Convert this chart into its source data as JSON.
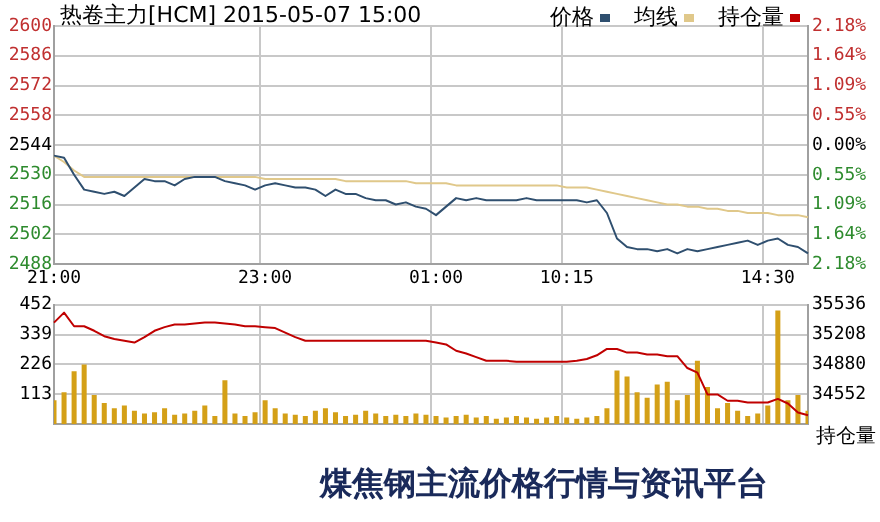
{
  "chart_data": [
    {
      "type": "line",
      "title": "热卷主力[HCM] 2015-05-07 15:00",
      "categories": [
        "21:00",
        null,
        null,
        null,
        null,
        null,
        null,
        null,
        null,
        null,
        null,
        null,
        null,
        null,
        null,
        null,
        null,
        null,
        null,
        null,
        null,
        "23:00",
        null,
        null,
        null,
        null,
        null,
        null,
        null,
        null,
        null,
        null,
        null,
        null,
        null,
        null,
        null,
        null,
        "01:00",
        null,
        null,
        null,
        null,
        null,
        null,
        null,
        null,
        null,
        null,
        null,
        null,
        "10:15",
        null,
        null,
        null,
        null,
        null,
        null,
        null,
        null,
        null,
        null,
        null,
        null,
        null,
        null,
        null,
        null,
        null,
        null,
        null,
        "14:30",
        null,
        null,
        null,
        null
      ],
      "series": [
        {
          "name": "价格",
          "color": "#2f4f6f",
          "values": [
            2539,
            2538,
            2530,
            2523,
            2522,
            2521,
            2522,
            2520,
            2524,
            2528,
            2527,
            2527,
            2525,
            2528,
            2529,
            2529,
            2529,
            2527,
            2526,
            2525,
            2523,
            2525,
            2526,
            2525,
            2524,
            2524,
            2523,
            2520,
            2523,
            2521,
            2521,
            2519,
            2518,
            2518,
            2516,
            2517,
            2515,
            2514,
            2511,
            2515,
            2519,
            2518,
            2519,
            2518,
            2518,
            2518,
            2518,
            2519,
            2518,
            2518,
            2518,
            2518,
            2518,
            2517,
            2518,
            2512,
            2500,
            2496,
            2495,
            2495,
            2494,
            2495,
            2493,
            2495,
            2494,
            2495,
            2496,
            2497,
            2498,
            2499,
            2497,
            2499,
            2500,
            2497,
            2496,
            2493
          ]
        },
        {
          "name": "均线",
          "color": "#e0c88a",
          "values": [
            2539,
            2536,
            2532,
            2529,
            2529,
            2529,
            2529,
            2529,
            2529,
            2529,
            2529,
            2529,
            2529,
            2529,
            2529,
            2529,
            2529,
            2529,
            2529,
            2529,
            2529,
            2528,
            2528,
            2528,
            2528,
            2528,
            2528,
            2528,
            2528,
            2527,
            2527,
            2527,
            2527,
            2527,
            2527,
            2527,
            2526,
            2526,
            2526,
            2526,
            2525,
            2525,
            2525,
            2525,
            2525,
            2525,
            2525,
            2525,
            2525,
            2525,
            2525,
            2524,
            2524,
            2524,
            2523,
            2522,
            2521,
            2520,
            2519,
            2518,
            2517,
            2516,
            2516,
            2515,
            2515,
            2514,
            2514,
            2513,
            2513,
            2512,
            2512,
            2512,
            2511,
            2511,
            2511,
            2510
          ]
        }
      ],
      "ylim": [
        2488,
        2600
      ],
      "yticks": [
        2488,
        2502,
        2516,
        2530,
        2544,
        2558,
        2572,
        2586,
        2600
      ],
      "y2lim": [
        -2.18,
        2.18
      ],
      "y2ticks": [
        {
          "value": -2.18,
          "label": "2.18%"
        },
        {
          "value": -1.64,
          "label": "1.64%"
        },
        {
          "value": -1.09,
          "label": "1.09%"
        },
        {
          "value": -0.55,
          "label": "0.55%"
        },
        {
          "value": 0,
          "label": "0.00%"
        },
        {
          "value": 0.55,
          "label": "0.55%"
        },
        {
          "value": 1.09,
          "label": "1.09%"
        },
        {
          "value": 1.64,
          "label": "1.64%"
        },
        {
          "value": 2.18,
          "label": "2.18%"
        }
      ],
      "grid": true,
      "legend": "top right"
    },
    {
      "type": "bar",
      "y2label": "持仓量",
      "categories": [
        null,
        null,
        null,
        null,
        null,
        null,
        null,
        null,
        null,
        null,
        null,
        null,
        null,
        null,
        null,
        null,
        null,
        null,
        null,
        null,
        null,
        null,
        null,
        null,
        null,
        null,
        null,
        null,
        null,
        null,
        null,
        null,
        null,
        null,
        null,
        null,
        null,
        null,
        null,
        null,
        null,
        null,
        null,
        null,
        null,
        null,
        null,
        null,
        null,
        null,
        null,
        null,
        null,
        null,
        null,
        null,
        null,
        null,
        null,
        null,
        null,
        null,
        null,
        null,
        null,
        null,
        null,
        null,
        null,
        null,
        null,
        null,
        null,
        null,
        null,
        null
      ],
      "series": [
        {
          "color": "#d4a017",
          "values": [
            90,
            120,
            200,
            226,
            110,
            80,
            60,
            70,
            50,
            40,
            45,
            60,
            35,
            40,
            50,
            70,
            30,
            166,
            40,
            30,
            45,
            90,
            60,
            40,
            35,
            30,
            50,
            60,
            45,
            30,
            35,
            50,
            40,
            30,
            35,
            30,
            40,
            35,
            30,
            25,
            30,
            35,
            25,
            30,
            20,
            25,
            30,
            25,
            20,
            25,
            30,
            25,
            20,
            25,
            30,
            60,
            203,
            180,
            120,
            100,
            150,
            160,
            90,
            110,
            240,
            140,
            60,
            80,
            50,
            30,
            40,
            70,
            430,
            90,
            110,
            50
          ]
        },
        {
          "name": "持仓量",
          "type": "line",
          "axis": "y2",
          "color": "#c00000",
          "values": [
            35340,
            35450,
            35300,
            35300,
            35250,
            35190,
            35160,
            35140,
            35120,
            35180,
            35250,
            35290,
            35320,
            35320,
            35330,
            35340,
            35340,
            35330,
            35320,
            35300,
            35300,
            35290,
            35280,
            35230,
            35180,
            35140,
            35140,
            35140,
            35140,
            35140,
            35140,
            35140,
            35140,
            35140,
            35140,
            35140,
            35140,
            35140,
            35120,
            35100,
            35030,
            35000,
            34960,
            34920,
            34920,
            34920,
            34910,
            34910,
            34910,
            34910,
            34910,
            34910,
            34920,
            34940,
            34980,
            35050,
            35050,
            35010,
            35010,
            34990,
            34990,
            34970,
            34970,
            34840,
            34790,
            34550,
            34550,
            34480,
            34480,
            34460,
            34460,
            34460,
            34500,
            34450,
            34350,
            34320
          ]
        }
      ],
      "ylim": [
        0,
        452
      ],
      "yticks": [
        113,
        226,
        339,
        452
      ],
      "y2lim": [
        34224,
        35536
      ],
      "y2ticks": [
        34552,
        34880,
        35208,
        35536
      ],
      "grid": true,
      "legend": "top right",
      "tick_labels": "y",
      "annotations": [
        "煤焦钢主流价格行情与资讯平台"
      ]
    }
  ]
}
